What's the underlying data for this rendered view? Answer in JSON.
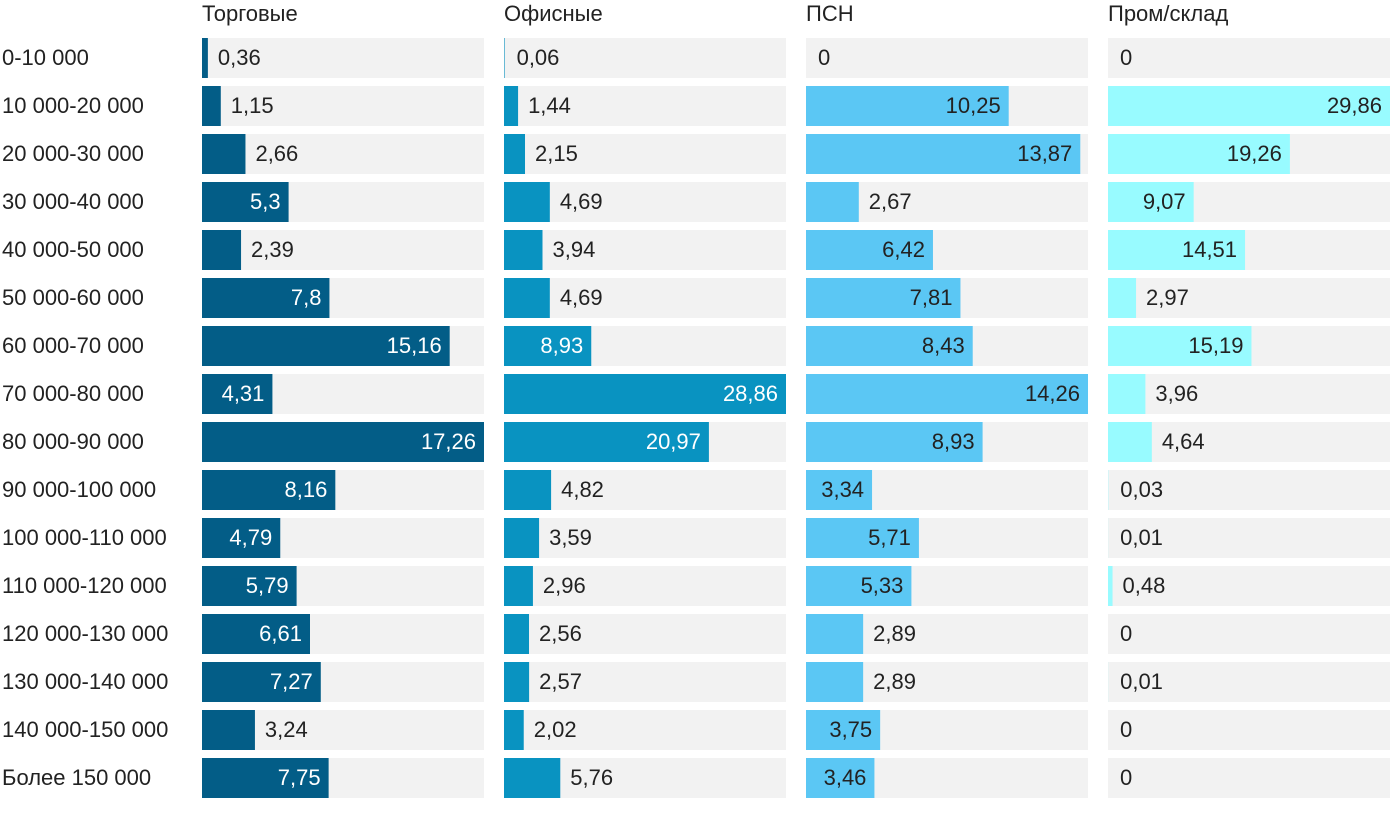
{
  "chart_data": {
    "type": "bar",
    "categories": [
      "0-10 000",
      "10 000-20 000",
      "20 000-30 000",
      "30 000-40 000",
      "40 000-50 000",
      "50 000-60 000",
      "60 000-70 000",
      "70 000-80 000",
      "80 000-90 000",
      "90 000-100 000",
      "100 000-110 000",
      "110 000-120 000",
      "120 000-130 000",
      "130 000-140 000",
      "140 000-150 000",
      "Более 150 000"
    ],
    "series": [
      {
        "name": "Торговые",
        "color": "#035d87",
        "xlim": [
          0,
          17.26
        ],
        "values": [
          0.36,
          1.15,
          2.66,
          5.3,
          2.39,
          7.8,
          15.16,
          4.31,
          17.26,
          8.16,
          4.79,
          5.79,
          6.61,
          7.27,
          3.24,
          7.75
        ],
        "value_labels": [
          "0,36",
          "1,15",
          "2,66",
          "5,3",
          "2,39",
          "7,8",
          "15,16",
          "4,31",
          "17,26",
          "8,16",
          "4,79",
          "5,79",
          "6,61",
          "7,27",
          "3,24",
          "7,75"
        ]
      },
      {
        "name": "Офисные",
        "color": "#0993c1",
        "xlim": [
          0,
          28.86
        ],
        "values": [
          0.06,
          1.44,
          2.15,
          4.69,
          3.94,
          4.69,
          8.93,
          28.86,
          20.97,
          4.82,
          3.59,
          2.96,
          2.56,
          2.57,
          2.02,
          5.76
        ],
        "value_labels": [
          "0,06",
          "1,44",
          "2,15",
          "4,69",
          "3,94",
          "4,69",
          "8,93",
          "28,86",
          "20,97",
          "4,82",
          "3,59",
          "2,96",
          "2,56",
          "2,57",
          "2,02",
          "5,76"
        ]
      },
      {
        "name": "ПСН",
        "color": "#5bc7f4",
        "xlim": [
          0,
          14.26
        ],
        "values": [
          0,
          10.25,
          13.87,
          2.67,
          6.42,
          7.81,
          8.43,
          14.26,
          8.93,
          3.34,
          5.71,
          5.33,
          2.89,
          2.89,
          3.75,
          3.46
        ],
        "value_labels": [
          "0",
          "10,25",
          "13,87",
          "2,67",
          "6,42",
          "7,81",
          "8,43",
          "14,26",
          "8,93",
          "3,34",
          "5,71",
          "5,33",
          "2,89",
          "2,89",
          "3,75",
          "3,46"
        ]
      },
      {
        "name": "Пром/склад",
        "color": "#98fbff",
        "xlim": [
          0,
          29.86
        ],
        "values": [
          0,
          29.86,
          19.26,
          9.07,
          14.51,
          2.97,
          15.19,
          3.96,
          4.64,
          0.03,
          0.01,
          0.48,
          0,
          0.01,
          0,
          0
        ],
        "value_labels": [
          "0",
          "29,86",
          "19,26",
          "9,07",
          "14,51",
          "2,97",
          "15,19",
          "3,96",
          "4,64",
          "0,03",
          "0,01",
          "0,48",
          "0",
          "0,01",
          "0",
          "0"
        ]
      }
    ]
  }
}
